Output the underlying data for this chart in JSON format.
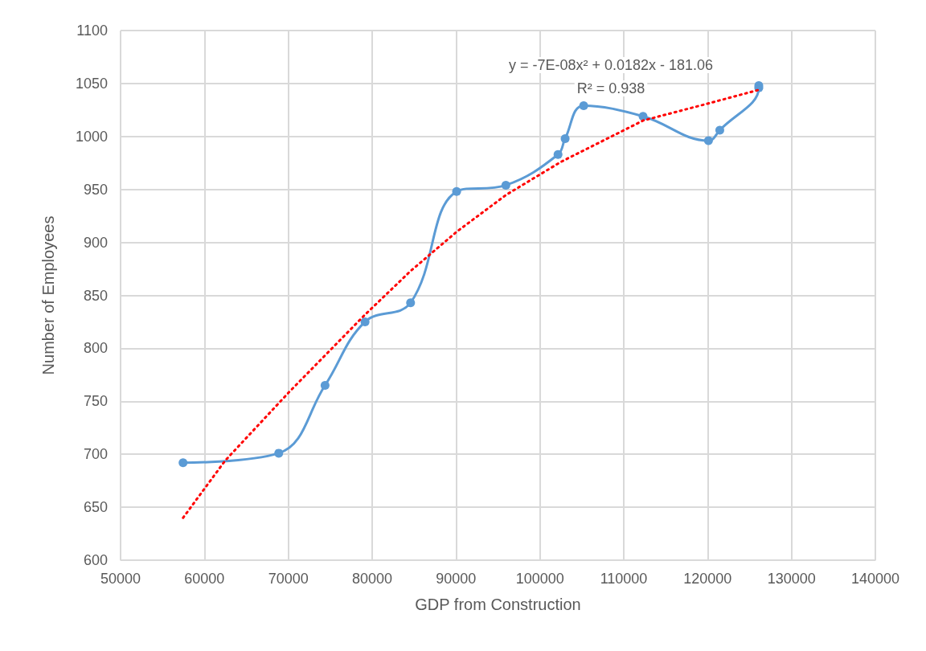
{
  "chart_data": {
    "type": "line",
    "xlabel": "GDP from Construction",
    "ylabel": "Number of Employees",
    "annotations": [
      "y = -7E-08x² + 0.0182x - 181.06",
      "R² = 0.938"
    ],
    "series": [
      {
        "color": "#5b9bd5",
        "marker": "circle",
        "line_style": "solid",
        "x": [
          57450,
          68860,
          74380,
          79150,
          84580,
          90070,
          95940,
          102160,
          103010,
          105220,
          112300,
          120100,
          121450,
          126100,
          126100
        ],
        "values": [
          692,
          701,
          765,
          825,
          843,
          948,
          954,
          983,
          998,
          1029,
          1019,
          996,
          1006,
          1046,
          1048
        ]
      },
      {
        "color": "#ff0000",
        "marker": "none",
        "line_style": "dotted",
        "x": [
          57450,
          62470,
          70130,
          79050,
          84580,
          90070,
          96000,
          102500,
          112300,
          120000,
          126100
        ],
        "values": [
          640,
          694,
          759,
          831,
          873,
          910,
          945,
          976,
          1015,
          1031,
          1044
        ]
      }
    ],
    "xlim": [
      50000,
      140000
    ],
    "xticks": [
      50000,
      60000,
      70000,
      80000,
      90000,
      100000,
      110000,
      120000,
      130000,
      140000
    ],
    "ylim": [
      600,
      1100
    ],
    "yticks": [
      600,
      650,
      700,
      750,
      800,
      850,
      900,
      950,
      1000,
      1050,
      1100
    ],
    "grid": true
  }
}
